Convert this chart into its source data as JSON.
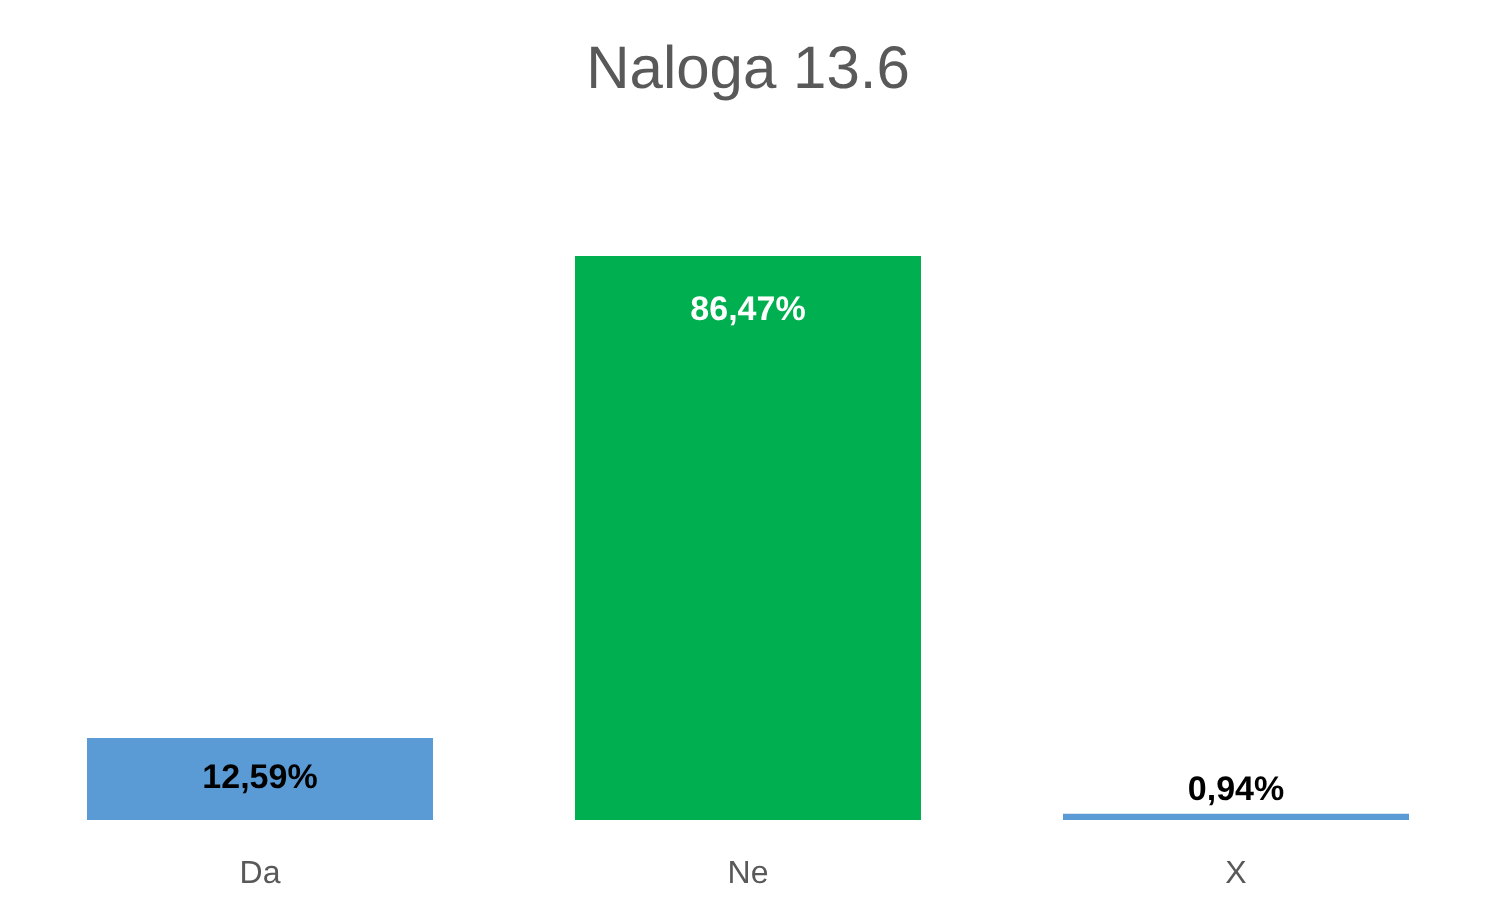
{
  "chart_data": {
    "type": "bar",
    "title": "Naloga 13.6",
    "categories": [
      "Da",
      "Ne",
      "X"
    ],
    "values": [
      12.59,
      86.47,
      0.94
    ],
    "value_labels": [
      "12,59%",
      "86,47%",
      "0,94%"
    ],
    "colors": [
      "#5b9bd5",
      "#00b050",
      "#5b9bd5"
    ]
  }
}
